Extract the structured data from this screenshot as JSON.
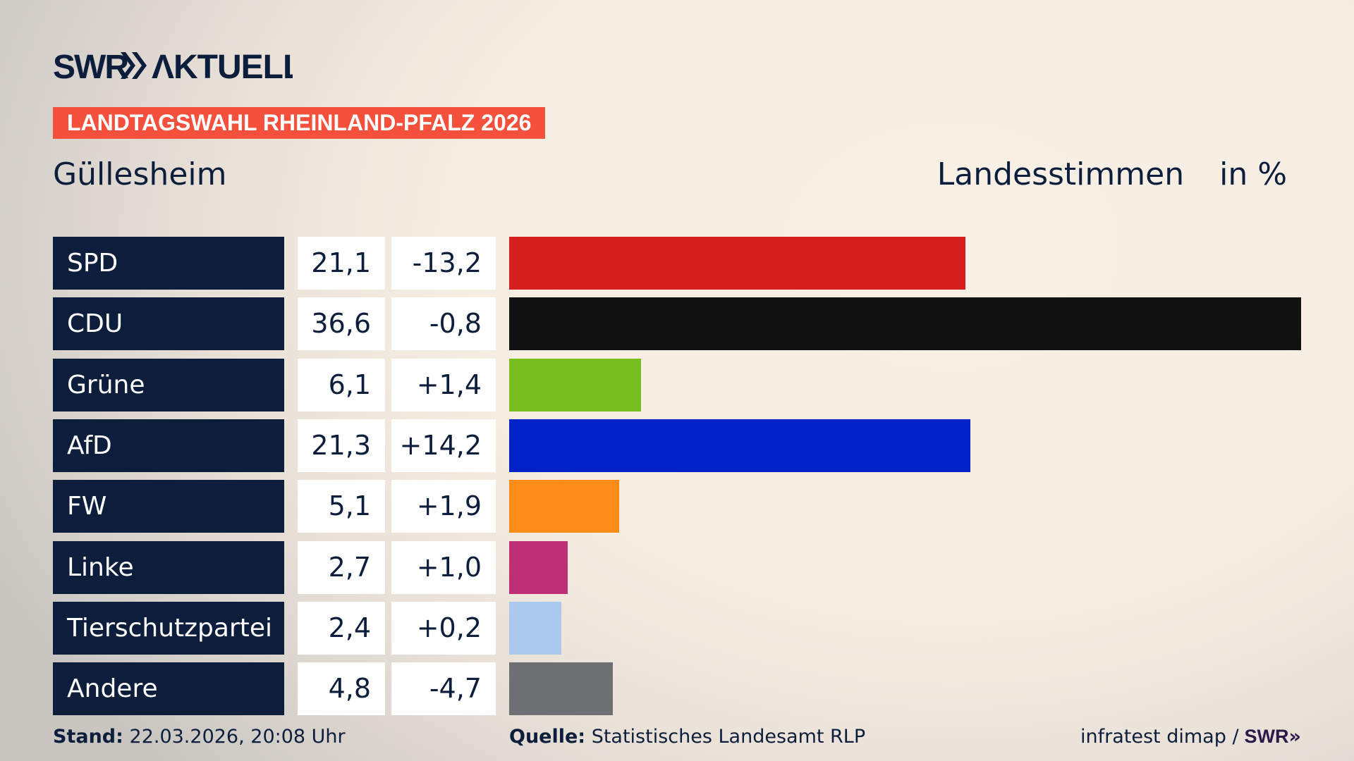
{
  "header": {
    "logo": "SWR AKTUELL",
    "banner": "LANDTAGSWAHL RHEINLAND-PFALZ 2026",
    "place": "Güllesheim",
    "measure": "Landesstimmen",
    "unit": "in %"
  },
  "chart_data": {
    "type": "bar",
    "orientation": "horizontal",
    "categories": [
      "SPD",
      "CDU",
      "Grüne",
      "AfD",
      "FW",
      "Linke",
      "Tierschutzpartei",
      "Andere"
    ],
    "values": [
      "21,1",
      "36,6",
      "6,1",
      "21,3",
      "5,1",
      "2,7",
      "2,4",
      "4,8"
    ],
    "numeric_values": [
      21.1,
      36.6,
      6.1,
      21.3,
      5.1,
      2.7,
      2.4,
      4.8
    ],
    "changes": [
      "-13,2",
      "-0,8",
      "+1,4",
      "+14,2",
      "+1,9",
      "+1,0",
      "+0,2",
      "-4,7"
    ],
    "colors": [
      "#d62020",
      "#121212",
      "#78be1e",
      "#0022c8",
      "#ff8c19",
      "#be3075",
      "#abc8ef",
      "#6e6f72"
    ],
    "xlim": [
      0,
      36.6
    ]
  },
  "footer": {
    "stand_label": "Stand:",
    "stand_value": "22.03.2026, 20:08 Uhr",
    "source_label": "Quelle:",
    "source_value": "Statistisches Landesamt RLP",
    "credit": "infratest dimap /",
    "credit_logo": "SWR"
  }
}
